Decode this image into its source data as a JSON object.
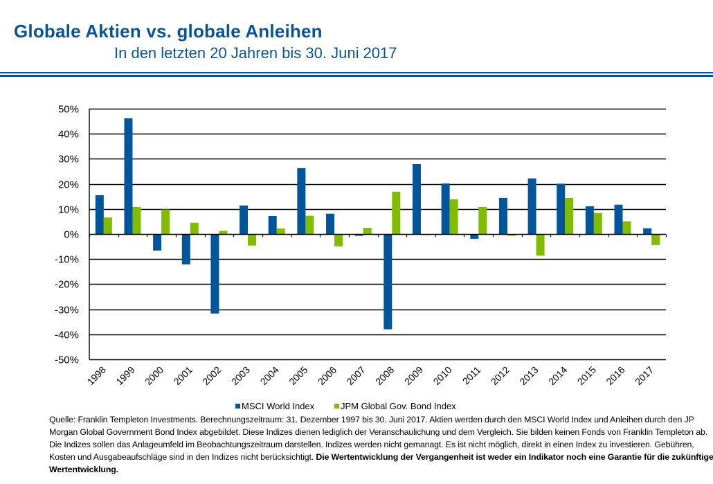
{
  "header": {
    "title": "Globale Aktien vs. globale Anleihen",
    "subtitle": "In den letzten 20 Jahren bis 30. Juni 2017"
  },
  "colors": {
    "brand_blue": "#0a5495",
    "msci": "#00559b",
    "jpm": "#82bc00"
  },
  "chart_data": {
    "type": "bar",
    "title": "Globale Aktien vs. globale Anleihen",
    "subtitle": "In den letzten 20 Jahren bis 30. Juni 2017",
    "xlabel": "",
    "ylabel": "",
    "ylim": [
      -50,
      50
    ],
    "ytick_step": 10,
    "ytick_labels": [
      "50%",
      "40%",
      "30%",
      "20%",
      "10%",
      "0%",
      "-10%",
      "-20%",
      "-30%",
      "-40%",
      "-50%"
    ],
    "grid": true,
    "legend_position": "bottom-center",
    "categories": [
      "1998",
      "1999",
      "2000",
      "2001",
      "2002",
      "2003",
      "2004",
      "2005",
      "2006",
      "2007",
      "2008",
      "2009",
      "2010",
      "2011",
      "2012",
      "2013",
      "2014",
      "2015",
      "2016",
      "2017"
    ],
    "series": [
      {
        "name": "MSCI World Index",
        "color": "#00559b",
        "values": [
          15.5,
          46.2,
          -6.6,
          -12.1,
          -31.7,
          11.4,
          7.2,
          26.3,
          8.1,
          -0.7,
          -38.0,
          27.9,
          20.2,
          -1.9,
          14.4,
          22.2,
          20.1,
          11.1,
          11.7,
          2.3
        ]
      },
      {
        "name": "JPM Global Gov. Bond Index",
        "color": "#82bc00",
        "values": [
          6.6,
          10.8,
          9.8,
          4.5,
          1.3,
          -4.6,
          2.2,
          7.3,
          -4.9,
          2.5,
          16.9,
          -0.4,
          13.9,
          10.8,
          -0.7,
          -8.6,
          14.4,
          8.4,
          5.1,
          -4.4
        ]
      }
    ]
  },
  "legend": {
    "msci_label": "MSCI World Index",
    "jpm_label": "JPM Global Gov. Bond Index"
  },
  "footer": {
    "text": "Quelle: Franklin Templeton Investments. Berechnungszeitraum: 31. Dezember 1997 bis 30. Juni 2017. Aktien werden durch den MSCI World Index und Anleihen durch den JP Morgan Global Government Bond Index abgebildet. Diese Indizes dienen lediglich der Veranschaulichung und dem Vergleich. Sie bilden keinen Fonds von Franklin Templeton ab. Die Indizes sollen das Anlageumfeld im Beobachtungszeitraum darstellen. Indizes werden nicht gemanagt. Es ist nicht möglich, direkt in einen Index zu investieren. Gebühren, Kosten und Ausgabeaufschläge sind in den Indizes nicht berücksichtigt. ",
    "bold_text": "Die Wertentwicklung der Vergangenheit ist weder ein Indikator noch eine Garantie für die zukünftige Wertentwicklung."
  }
}
